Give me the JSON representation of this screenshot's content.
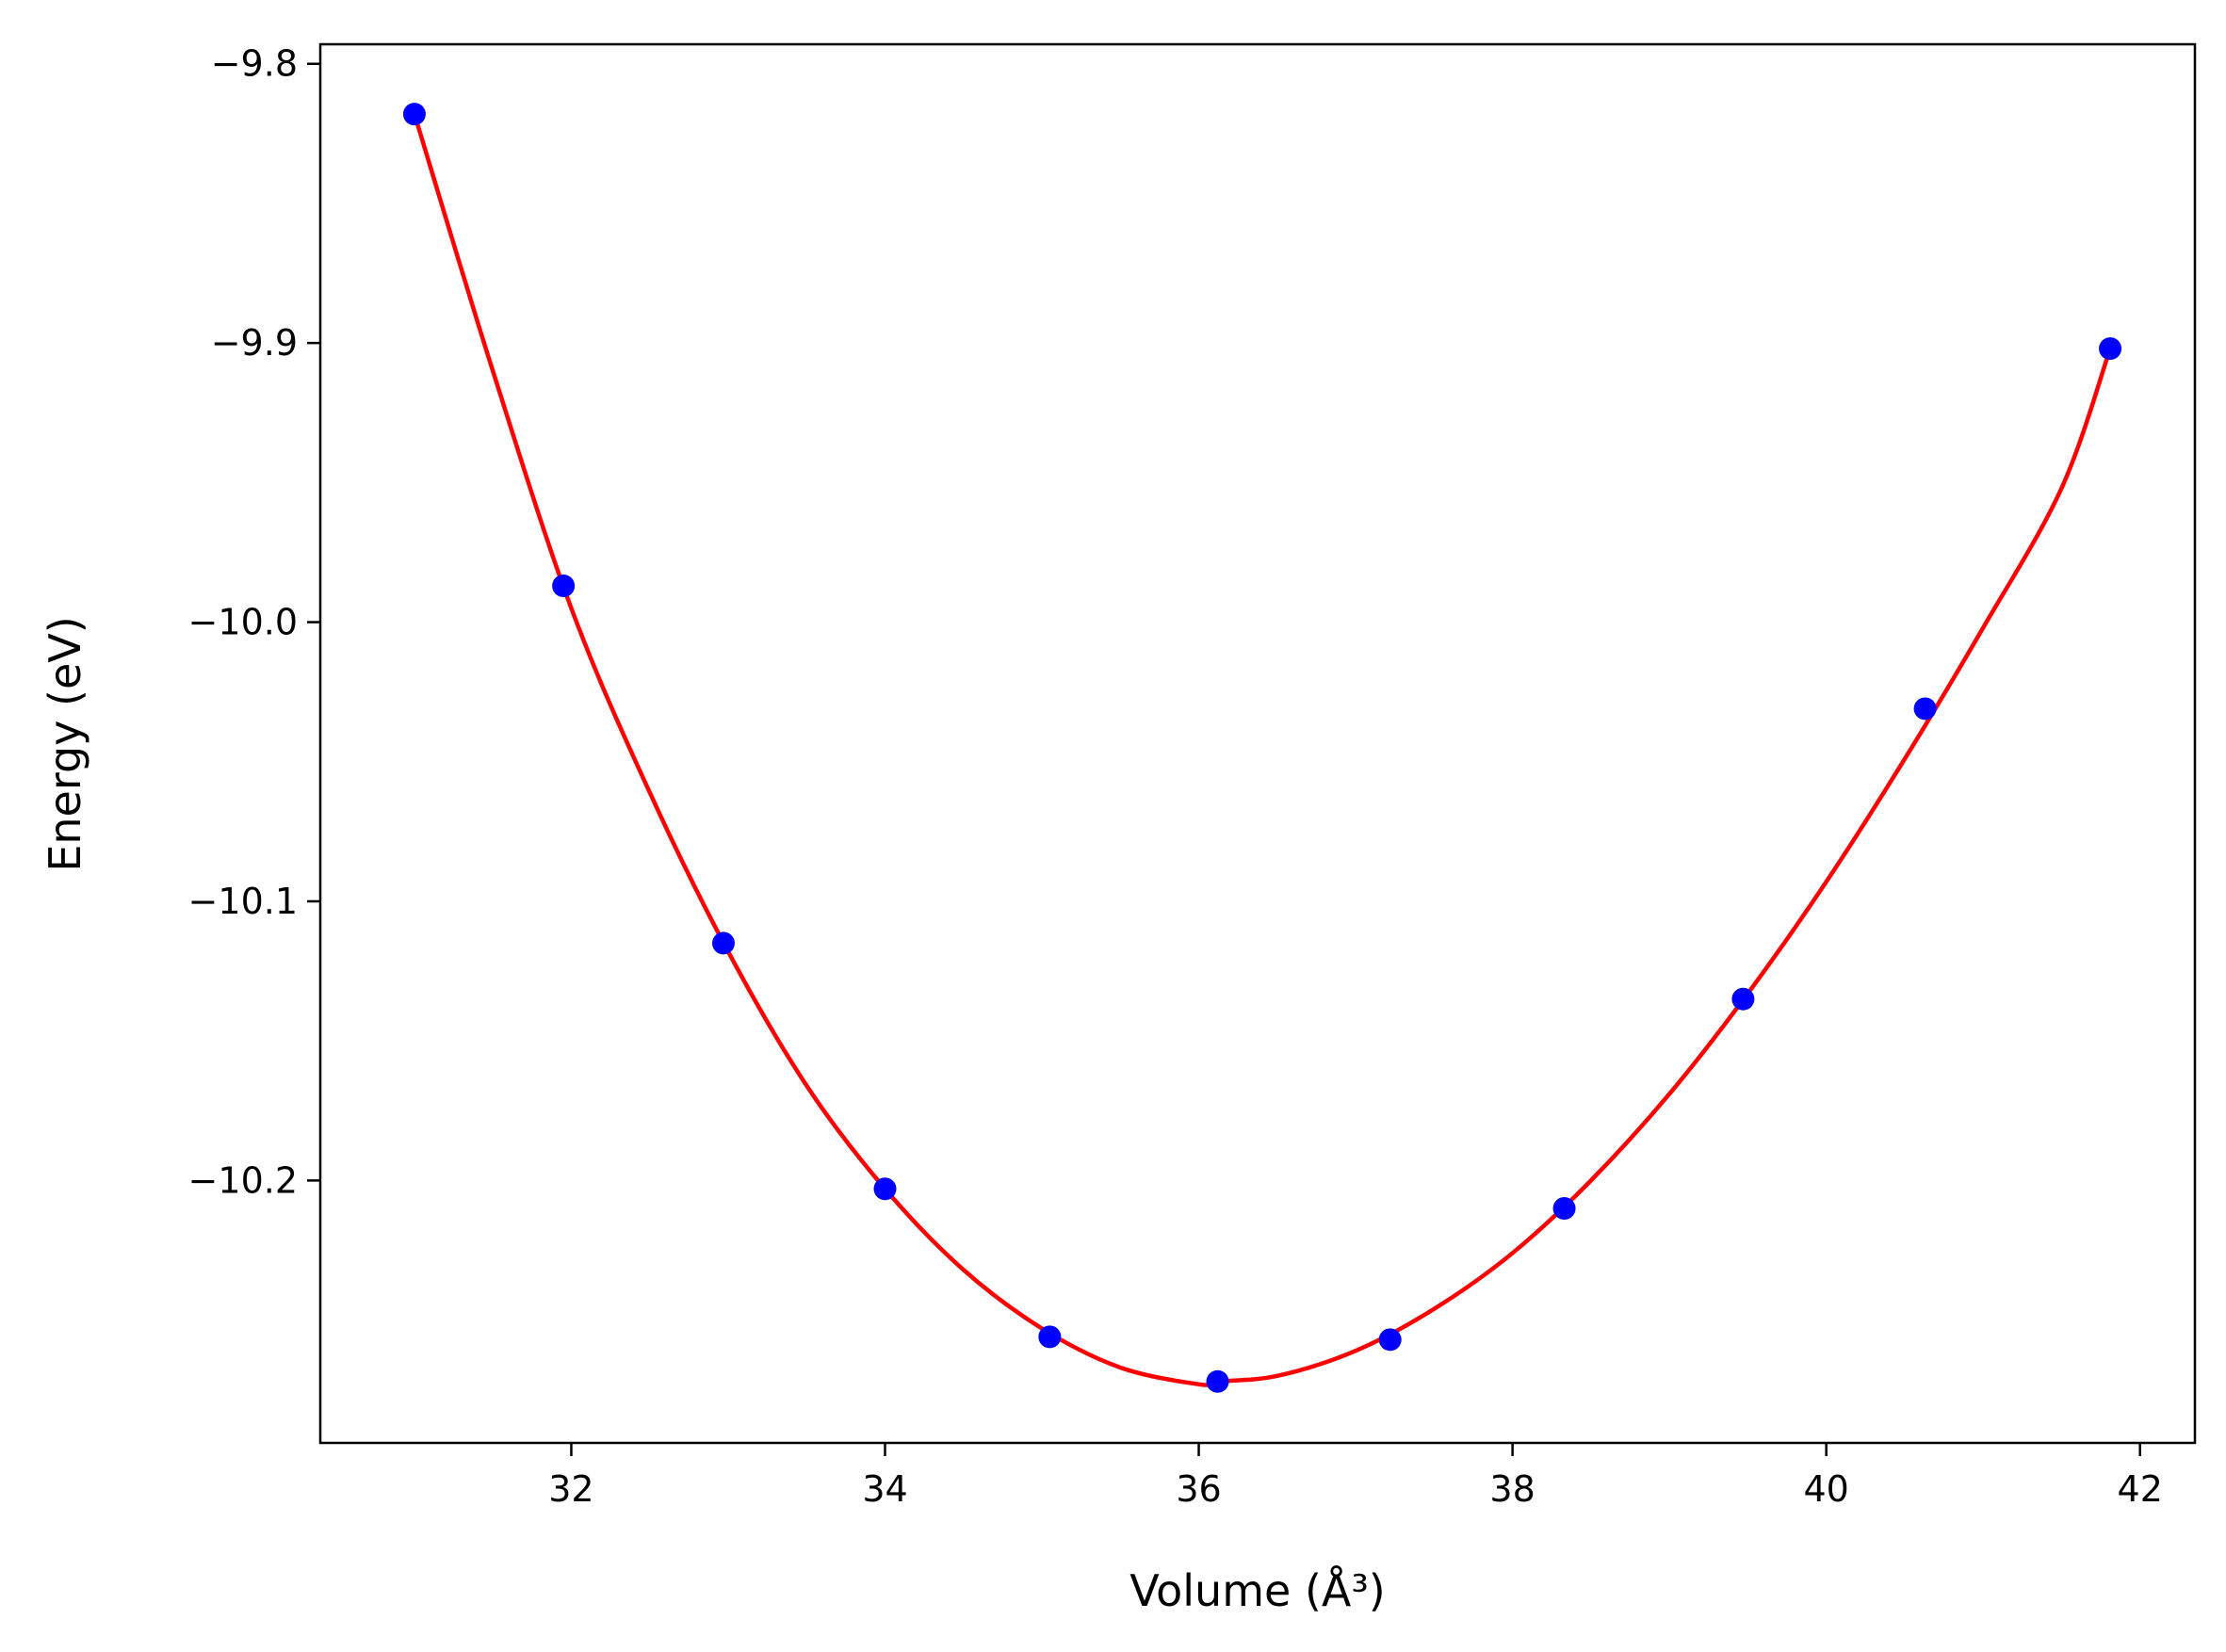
{
  "chart_data": {
    "type": "scatter",
    "title": "",
    "xlabel": "Volume (Å³)",
    "ylabel": "Energy (eV)",
    "xlim": [
      30.4,
      42.35
    ],
    "ylim": [
      -10.294,
      -9.793
    ],
    "x_ticks": [
      32,
      34,
      36,
      38,
      40,
      42
    ],
    "x_tick_labels": [
      "32",
      "34",
      "36",
      "38",
      "40",
      "42"
    ],
    "y_ticks": [
      -9.8,
      -9.9,
      -10.0,
      -10.1,
      -10.2
    ],
    "y_tick_labels": [
      "−9.8",
      "−9.9",
      "−10.0",
      "−10.1",
      "−10.2"
    ],
    "grid": false,
    "series": [
      {
        "kind": "points",
        "color": "#0000ff",
        "x": [
          31.0,
          31.95,
          32.97,
          34.0,
          35.05,
          36.12,
          37.22,
          38.33,
          39.47,
          40.63,
          41.81
        ],
        "y": [
          -9.818,
          -9.987,
          -10.115,
          -10.203,
          -10.256,
          -10.272,
          -10.257,
          -10.21,
          -10.135,
          -10.031,
          -9.902
        ]
      },
      {
        "kind": "curve",
        "color": "#ff0000",
        "x": [
          31.0,
          31.5,
          32.0,
          32.5,
          33.0,
          33.5,
          34.0,
          34.5,
          35.0,
          35.5,
          36.0,
          36.12,
          36.5,
          37.0,
          37.5,
          38.0,
          38.5,
          39.0,
          39.5,
          40.0,
          40.5,
          41.0,
          41.5,
          41.81
        ],
        "y": [
          -9.818,
          -9.91,
          -9.995,
          -10.061,
          -10.118,
          -10.166,
          -10.203,
          -10.232,
          -10.253,
          -10.267,
          -10.273,
          -10.272,
          -10.27,
          -10.261,
          -10.246,
          -10.226,
          -10.2,
          -10.169,
          -10.133,
          -10.093,
          -10.049,
          -10.002,
          -9.952,
          -9.902
        ]
      }
    ]
  }
}
